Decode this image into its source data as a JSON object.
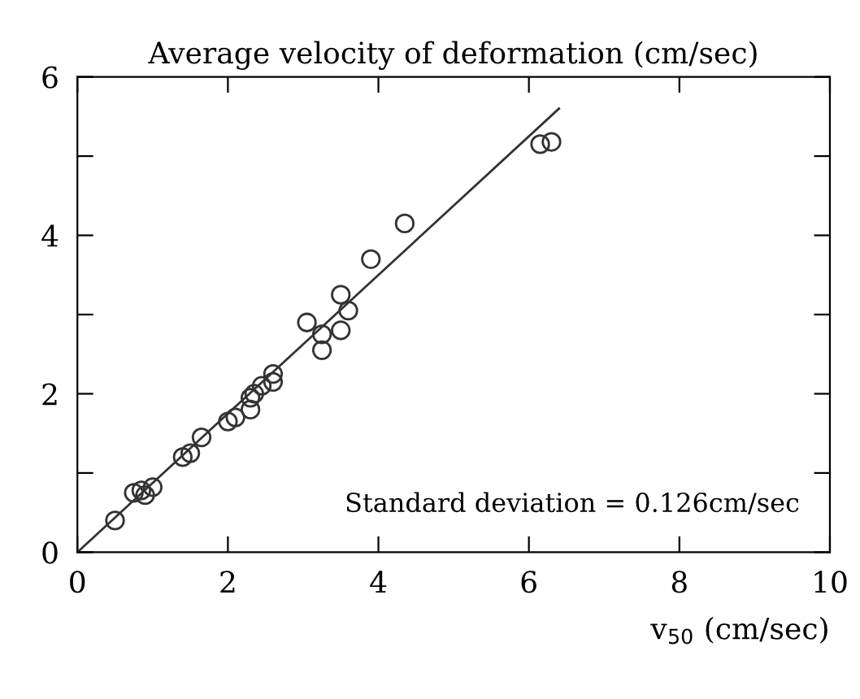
{
  "chart_data": {
    "type": "scatter",
    "title": "Average velocity of deformation (cm/sec)",
    "xlabel": "v$_{50}$ (cm/sec)",
    "xlim": [
      0,
      10
    ],
    "ylim": [
      0,
      6
    ],
    "xticks": [
      0,
      2,
      4,
      6,
      8,
      10
    ],
    "yticks": [
      0,
      {
        "value": 1,
        "label": null
      },
      2,
      {
        "value": 3,
        "label": null
      },
      4,
      {
        "value": 5,
        "label": null
      },
      6
    ],
    "marker": "circle",
    "grid": false,
    "legend": false,
    "annotations": [
      "Standard deviation = 0.126cm/sec"
    ],
    "series": [
      {
        "color": "#333333",
        "x": [
          0.5,
          0.75,
          0.85,
          0.9,
          1.0,
          1.4,
          1.5,
          1.65,
          2.0,
          2.1,
          2.3,
          2.3,
          2.35,
          2.45,
          2.6,
          2.6,
          3.05,
          3.25,
          3.25,
          3.5,
          3.5,
          3.6,
          3.9,
          4.35,
          6.15,
          6.3
        ],
        "values": [
          0.4,
          0.75,
          0.78,
          0.72,
          0.82,
          1.2,
          1.25,
          1.45,
          1.65,
          1.7,
          1.8,
          1.95,
          2.0,
          2.1,
          2.15,
          2.25,
          2.9,
          2.75,
          2.55,
          2.8,
          3.25,
          3.05,
          3.7,
          4.15,
          5.15,
          5.18
        ]
      },
      {
        "type": "line",
        "color": "#333333",
        "x": [
          0,
          6.4
        ],
        "values": [
          0,
          5.6
        ],
        "marker": "none"
      }
    ]
  }
}
